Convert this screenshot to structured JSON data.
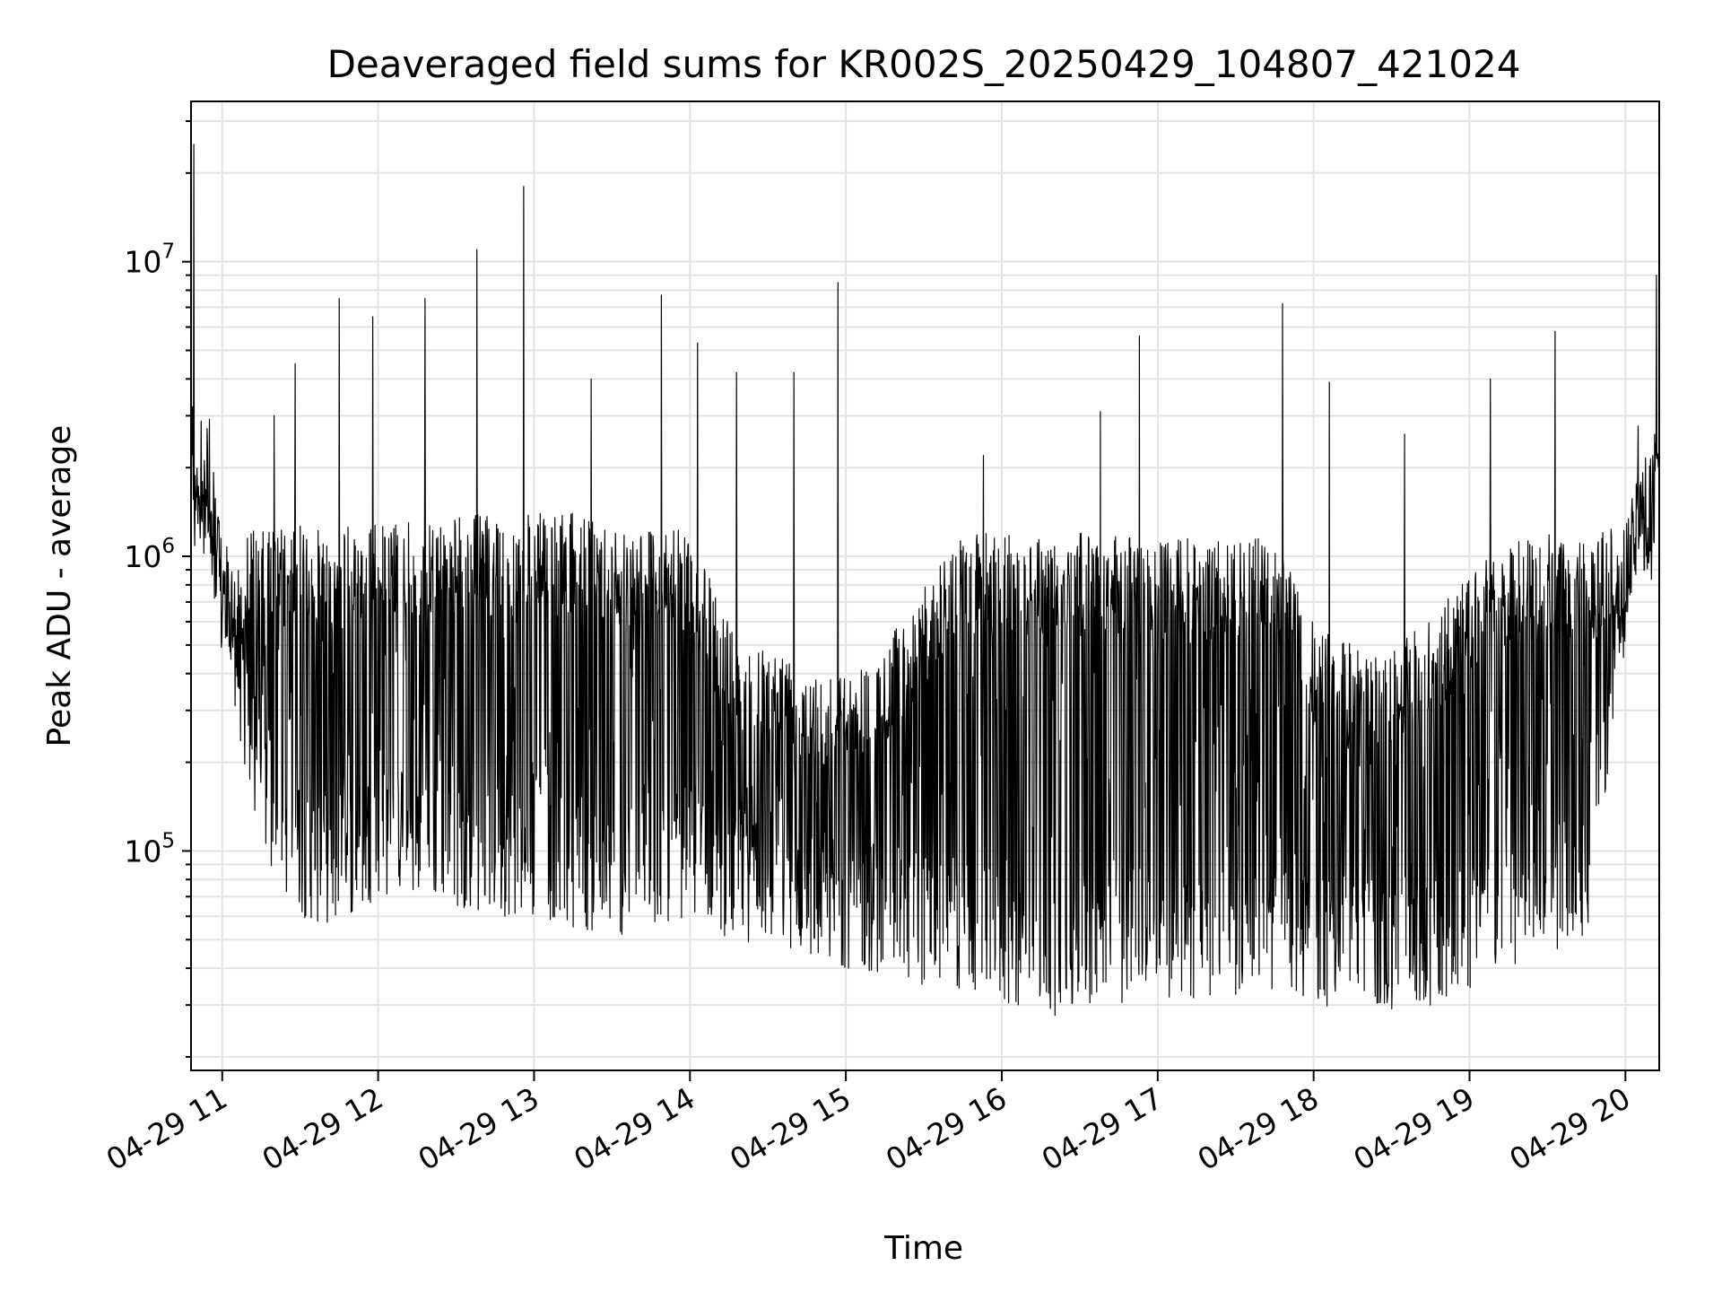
{
  "chart_data": {
    "type": "line",
    "title": "Deaveraged field sums for KR002S_20250429_104807_421024",
    "xlabel": "Time",
    "ylabel": "Peak ADU - average",
    "yscale": "log",
    "grid": true,
    "xlim": [
      "04-29 10:48",
      "04-29 20:13"
    ],
    "ylim": [
      18000,
      35000000
    ],
    "x_ticks": [
      "04-29 11",
      "04-29 12",
      "04-29 13",
      "04-29 14",
      "04-29 15",
      "04-29 16",
      "04-29 17",
      "04-29 18",
      "04-29 19",
      "04-29 20"
    ],
    "y_ticks": [
      {
        "base": "10",
        "exp": "5",
        "value": 100000
      },
      {
        "base": "10",
        "exp": "6",
        "value": 1000000
      },
      {
        "base": "10",
        "exp": "7",
        "value": 10000000
      }
    ],
    "series_color": "#000000",
    "series": [
      {
        "name": "",
        "x": [
          "04-29 10:48",
          "04-29 10:49",
          "04-29 10:52",
          "04-29 10:55",
          "04-29 11:00",
          "04-29 11:05",
          "04-29 11:10",
          "04-29 11:15",
          "04-29 11:20",
          "04-29 11:25",
          "04-29 11:30",
          "04-29 11:40",
          "04-29 11:50",
          "04-29 12:00",
          "04-29 12:15",
          "04-29 12:30",
          "04-29 12:45",
          "04-29 13:00",
          "04-29 13:15",
          "04-29 13:30",
          "04-29 13:45",
          "04-29 14:00",
          "04-29 14:15",
          "04-29 14:30",
          "04-29 14:45",
          "04-29 15:00",
          "04-29 15:15",
          "04-29 15:30",
          "04-29 15:45",
          "04-29 16:00",
          "04-29 16:15",
          "04-29 16:30",
          "04-29 16:45",
          "04-29 17:00",
          "04-29 17:15",
          "04-29 17:30",
          "04-29 17:45",
          "04-29 18:00",
          "04-29 18:15",
          "04-29 18:30",
          "04-29 18:45",
          "04-29 19:00",
          "04-29 19:15",
          "04-29 19:30",
          "04-29 19:45",
          "04-29 20:00",
          "04-29 20:05",
          "04-29 20:10",
          "04-29 20:13"
        ],
        "high": [
          25000000,
          2000000,
          2400000,
          1800000,
          1200000,
          900000,
          1300000,
          1200000,
          1300000,
          1250000,
          1300000,
          1200000,
          1300000,
          1300000,
          1350000,
          1400000,
          1400000,
          1400000,
          1400000,
          1300000,
          1300000,
          1200000,
          600000,
          500000,
          450000,
          400000,
          500000,
          800000,
          1200000,
          1200000,
          1200000,
          1200000,
          1200000,
          1150000,
          1150000,
          1150000,
          1150000,
          600000,
          500000,
          500000,
          600000,
          900000,
          1100000,
          1200000,
          1100000,
          1400000,
          2000000,
          1800000,
          3300000
        ],
        "low": [
          1100000,
          1100000,
          1200000,
          1100000,
          400000,
          300000,
          150000,
          100000,
          80000,
          70000,
          60000,
          55000,
          60000,
          70000,
          70000,
          65000,
          60000,
          60000,
          55000,
          50000,
          55000,
          60000,
          50000,
          48000,
          45000,
          40000,
          38000,
          35000,
          33000,
          30000,
          28000,
          27000,
          30000,
          32000,
          31000,
          32000,
          31000,
          30000,
          29000,
          28000,
          27000,
          33000,
          38000,
          45000,
          50000,
          500000,
          1100000,
          900000,
          1100000
        ]
      }
    ],
    "spikes": [
      {
        "x": "04-29 10:49",
        "y": 25000000
      },
      {
        "x": "04-29 11:20",
        "y": 3000000
      },
      {
        "x": "04-29 11:28",
        "y": 4500000
      },
      {
        "x": "04-29 11:45",
        "y": 7500000
      },
      {
        "x": "04-29 11:58",
        "y": 6500000
      },
      {
        "x": "04-29 12:18",
        "y": 7500000
      },
      {
        "x": "04-29 12:38",
        "y": 11000000
      },
      {
        "x": "04-29 12:56",
        "y": 18000000
      },
      {
        "x": "04-29 13:22",
        "y": 4000000
      },
      {
        "x": "04-29 13:49",
        "y": 7700000
      },
      {
        "x": "04-29 14:03",
        "y": 5300000
      },
      {
        "x": "04-29 14:18",
        "y": 4200000
      },
      {
        "x": "04-29 14:40",
        "y": 4200000
      },
      {
        "x": "04-29 14:57",
        "y": 8500000
      },
      {
        "x": "04-29 15:53",
        "y": 2200000
      },
      {
        "x": "04-29 16:38",
        "y": 3100000
      },
      {
        "x": "04-29 16:53",
        "y": 5600000
      },
      {
        "x": "04-29 17:48",
        "y": 7200000
      },
      {
        "x": "04-29 18:06",
        "y": 3900000
      },
      {
        "x": "04-29 18:35",
        "y": 2600000
      },
      {
        "x": "04-29 19:08",
        "y": 4000000
      },
      {
        "x": "04-29 19:33",
        "y": 5800000
      },
      {
        "x": "04-29 20:12",
        "y": 9000000
      }
    ]
  }
}
